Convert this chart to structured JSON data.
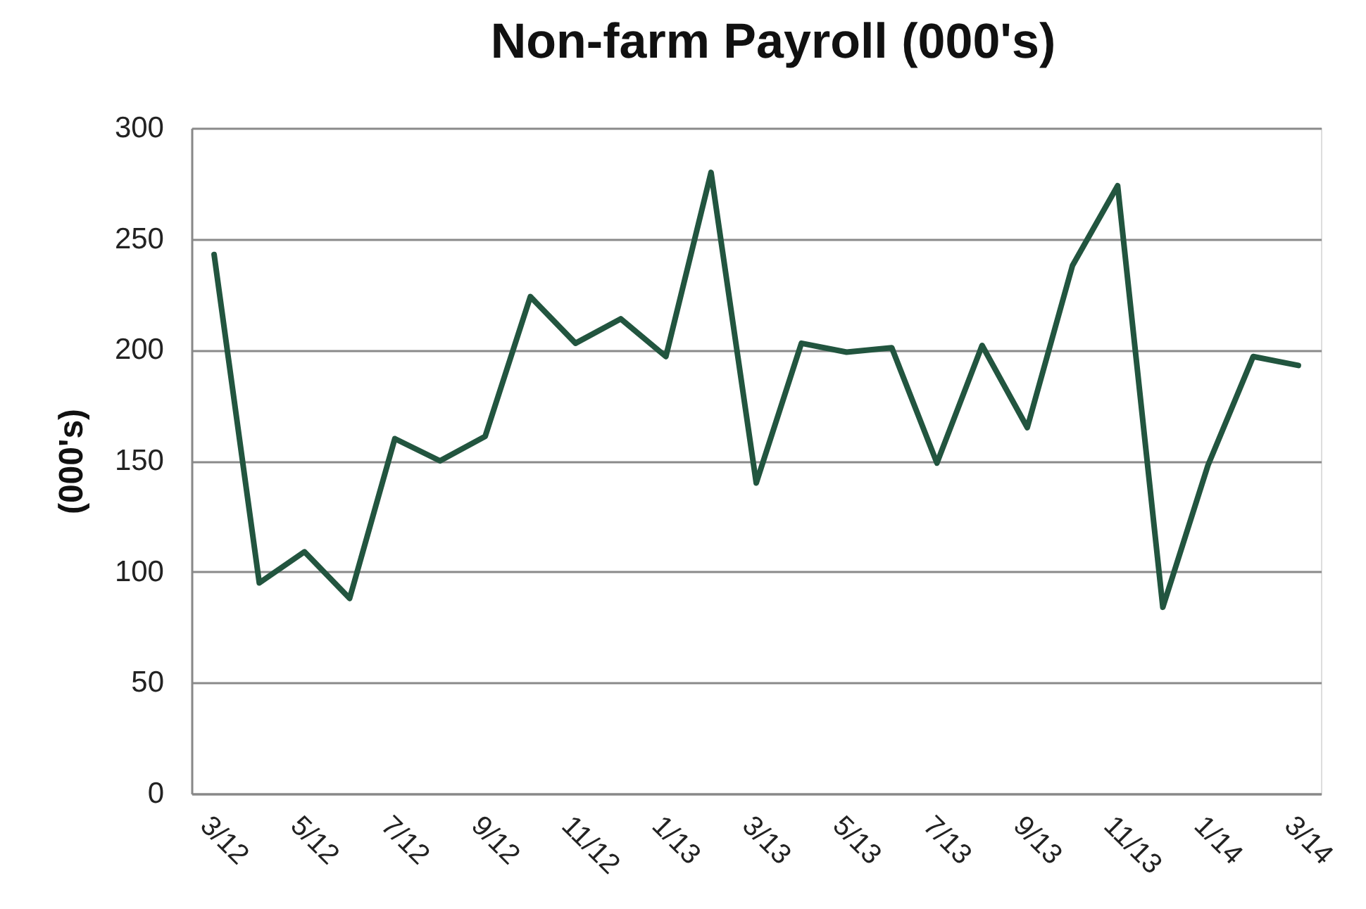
{
  "chart_data": {
    "type": "line",
    "title": "Non-farm Payroll (000's)",
    "ylabel": "(000's)",
    "categories": [
      "3/12",
      null,
      "5/12",
      null,
      "7/12",
      null,
      "9/12",
      null,
      "11/12",
      null,
      "1/13",
      null,
      "3/13",
      null,
      "5/13",
      null,
      "7/13",
      null,
      "9/13",
      null,
      "11/13",
      null,
      "1/14",
      null,
      "3/14"
    ],
    "series": [
      {
        "color": "#22553f",
        "values": [
          243,
          95,
          109,
          88,
          160,
          150,
          161,
          224,
          203,
          214,
          197,
          280,
          140,
          203,
          199,
          201,
          149,
          202,
          165,
          238,
          274,
          84,
          148,
          197,
          193
        ]
      }
    ],
    "ylim": [
      0,
      300
    ],
    "yticks": [
      0,
      50,
      100,
      150,
      200,
      250,
      300
    ],
    "grid": "y",
    "line_style": "solid"
  }
}
